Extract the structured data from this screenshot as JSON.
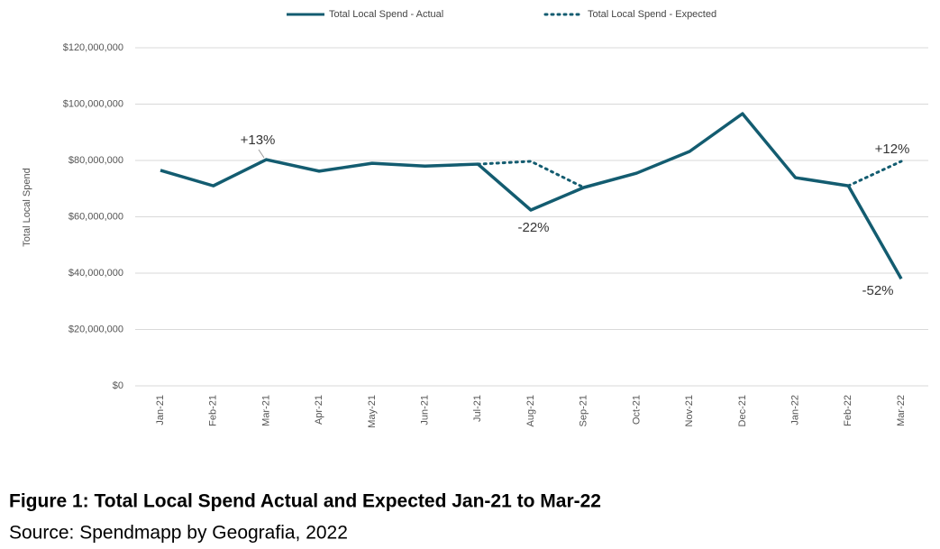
{
  "chart_data": {
    "type": "line",
    "y_label": "Total Local Spend",
    "categories": [
      "Jan-21",
      "Feb-21",
      "Mar-21",
      "Apr-21",
      "May-21",
      "Jun-21",
      "Jul-21",
      "Aug-21",
      "Sep-21",
      "Oct-21",
      "Nov-21",
      "Dec-21",
      "Jan-22",
      "Feb-22",
      "Mar-22"
    ],
    "series": [
      {
        "name": "Total Local Spend - Actual",
        "color": "#135c70",
        "style": "solid",
        "values": [
          76500000,
          71000000,
          80300000,
          76200000,
          79000000,
          78000000,
          78700000,
          62400000,
          70400000,
          75500000,
          83200000,
          96600000,
          73900000,
          71000000,
          38000000
        ]
      },
      {
        "name": "Total Local Spend - Expected",
        "color": "#135c70",
        "style": "dotted",
        "values": [
          null,
          null,
          null,
          null,
          null,
          null,
          78700000,
          79700000,
          70400000,
          null,
          null,
          null,
          null,
          71000000,
          79700000
        ]
      }
    ],
    "ylim": [
      0,
      120000000
    ],
    "yticks": [
      {
        "value": 0,
        "label": "$0"
      },
      {
        "value": 20000000,
        "label": "$20,000,000"
      },
      {
        "value": 40000000,
        "label": "$40,000,000"
      },
      {
        "value": 60000000,
        "label": "$60,000,000"
      },
      {
        "value": 80000000,
        "label": "$80,000,000"
      },
      {
        "value": 100000000,
        "label": "$100,000,000"
      },
      {
        "value": 120000000,
        "label": "$120,000,000"
      }
    ],
    "grid": true,
    "legend": "top",
    "annotations": [
      "+13%",
      "-22%",
      "+12%",
      "-52%"
    ],
    "caption": "Figure 1: Total Local Spend Actual and Expected Jan-21 to Mar-22",
    "source": "Source: Spendmapp by Geografia, 2022"
  }
}
